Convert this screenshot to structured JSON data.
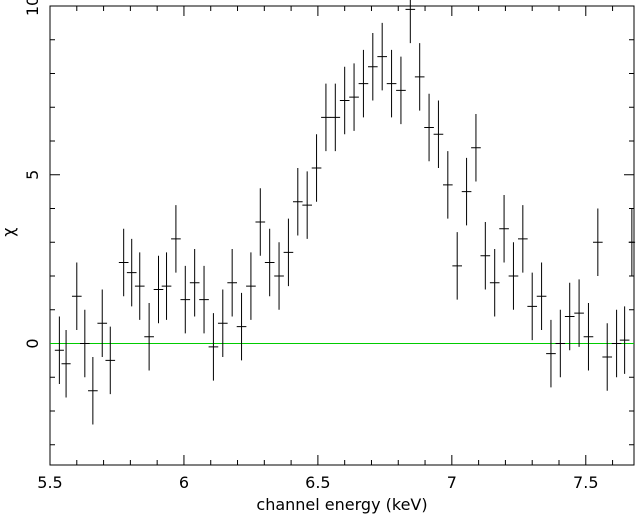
{
  "chart_data": {
    "type": "scatter",
    "title": "",
    "xlabel": "channel energy (keV)",
    "ylabel": "χ",
    "xlim": [
      5.5,
      7.68
    ],
    "ylim": [
      -3.6,
      10.0
    ],
    "xticks": [
      "5.5",
      "6",
      "6.5",
      "7",
      "7.5"
    ],
    "yticks": [
      "0",
      "5",
      "10"
    ],
    "x_tick_values": [
      5.5,
      6.0,
      6.5,
      7.0,
      7.5
    ],
    "y_tick_values": [
      0,
      5,
      10
    ],
    "reference_line": {
      "y": 0,
      "color": "#00cc00"
    },
    "series": [
      {
        "points": [
          {
            "x": 5.535,
            "y": -0.2,
            "xerr": 0.017,
            "yerr": 1.0
          },
          {
            "x": 5.56,
            "y": -0.6,
            "xerr": 0.017,
            "yerr": 1.0
          },
          {
            "x": 5.6,
            "y": 1.4,
            "xerr": 0.018,
            "yerr": 1.0
          },
          {
            "x": 5.63,
            "y": 0.0,
            "xerr": 0.018,
            "yerr": 1.0
          },
          {
            "x": 5.66,
            "y": -1.4,
            "xerr": 0.018,
            "yerr": 1.0
          },
          {
            "x": 5.695,
            "y": 0.6,
            "xerr": 0.018,
            "yerr": 1.0
          },
          {
            "x": 5.725,
            "y": -0.5,
            "xerr": 0.018,
            "yerr": 1.0
          },
          {
            "x": 5.775,
            "y": 2.4,
            "xerr": 0.018,
            "yerr": 1.0
          },
          {
            "x": 5.805,
            "y": 2.1,
            "xerr": 0.018,
            "yerr": 1.0
          },
          {
            "x": 5.835,
            "y": 1.7,
            "xerr": 0.018,
            "yerr": 1.0
          },
          {
            "x": 5.87,
            "y": 0.2,
            "xerr": 0.018,
            "yerr": 1.0
          },
          {
            "x": 5.905,
            "y": 1.6,
            "xerr": 0.018,
            "yerr": 1.0
          },
          {
            "x": 5.935,
            "y": 1.7,
            "xerr": 0.018,
            "yerr": 1.0
          },
          {
            "x": 5.97,
            "y": 3.1,
            "xerr": 0.018,
            "yerr": 1.0
          },
          {
            "x": 6.005,
            "y": 1.3,
            "xerr": 0.018,
            "yerr": 1.0
          },
          {
            "x": 6.04,
            "y": 1.8,
            "xerr": 0.018,
            "yerr": 1.0
          },
          {
            "x": 6.075,
            "y": 1.3,
            "xerr": 0.018,
            "yerr": 1.0
          },
          {
            "x": 6.11,
            "y": -0.1,
            "xerr": 0.018,
            "yerr": 1.0
          },
          {
            "x": 6.145,
            "y": 0.6,
            "xerr": 0.018,
            "yerr": 1.0
          },
          {
            "x": 6.18,
            "y": 1.8,
            "xerr": 0.018,
            "yerr": 1.0
          },
          {
            "x": 6.215,
            "y": 0.5,
            "xerr": 0.018,
            "yerr": 1.0
          },
          {
            "x": 6.25,
            "y": 1.7,
            "xerr": 0.018,
            "yerr": 1.0
          },
          {
            "x": 6.285,
            "y": 3.6,
            "xerr": 0.018,
            "yerr": 1.0
          },
          {
            "x": 6.32,
            "y": 2.4,
            "xerr": 0.018,
            "yerr": 1.0
          },
          {
            "x": 6.355,
            "y": 2.0,
            "xerr": 0.018,
            "yerr": 1.0
          },
          {
            "x": 6.39,
            "y": 2.7,
            "xerr": 0.018,
            "yerr": 1.0
          },
          {
            "x": 6.425,
            "y": 4.2,
            "xerr": 0.018,
            "yerr": 1.0
          },
          {
            "x": 6.46,
            "y": 4.1,
            "xerr": 0.018,
            "yerr": 1.0
          },
          {
            "x": 6.495,
            "y": 5.2,
            "xerr": 0.018,
            "yerr": 1.0
          },
          {
            "x": 6.53,
            "y": 6.7,
            "xerr": 0.018,
            "yerr": 1.0
          },
          {
            "x": 6.565,
            "y": 6.7,
            "xerr": 0.018,
            "yerr": 1.0
          },
          {
            "x": 6.6,
            "y": 7.2,
            "xerr": 0.018,
            "yerr": 1.0
          },
          {
            "x": 6.635,
            "y": 7.3,
            "xerr": 0.018,
            "yerr": 1.0
          },
          {
            "x": 6.67,
            "y": 7.7,
            "xerr": 0.018,
            "yerr": 1.0
          },
          {
            "x": 6.705,
            "y": 8.2,
            "xerr": 0.018,
            "yerr": 1.0
          },
          {
            "x": 6.74,
            "y": 8.5,
            "xerr": 0.018,
            "yerr": 1.0
          },
          {
            "x": 6.775,
            "y": 7.7,
            "xerr": 0.018,
            "yerr": 1.0
          },
          {
            "x": 6.81,
            "y": 7.5,
            "xerr": 0.018,
            "yerr": 1.0
          },
          {
            "x": 6.845,
            "y": 9.9,
            "xerr": 0.018,
            "yerr": 1.0
          },
          {
            "x": 6.88,
            "y": 7.9,
            "xerr": 0.018,
            "yerr": 1.0
          },
          {
            "x": 6.915,
            "y": 6.4,
            "xerr": 0.018,
            "yerr": 1.0
          },
          {
            "x": 6.95,
            "y": 6.2,
            "xerr": 0.018,
            "yerr": 1.0
          },
          {
            "x": 6.985,
            "y": 4.7,
            "xerr": 0.018,
            "yerr": 1.0
          },
          {
            "x": 7.02,
            "y": 2.3,
            "xerr": 0.018,
            "yerr": 1.0
          },
          {
            "x": 7.055,
            "y": 4.5,
            "xerr": 0.018,
            "yerr": 1.0
          },
          {
            "x": 7.09,
            "y": 5.8,
            "xerr": 0.018,
            "yerr": 1.0
          },
          {
            "x": 7.125,
            "y": 2.6,
            "xerr": 0.018,
            "yerr": 1.0
          },
          {
            "x": 7.16,
            "y": 1.8,
            "xerr": 0.018,
            "yerr": 1.0
          },
          {
            "x": 7.195,
            "y": 3.4,
            "xerr": 0.018,
            "yerr": 1.0
          },
          {
            "x": 7.23,
            "y": 2.0,
            "xerr": 0.018,
            "yerr": 1.0
          },
          {
            "x": 7.265,
            "y": 3.1,
            "xerr": 0.018,
            "yerr": 1.0
          },
          {
            "x": 7.3,
            "y": 1.1,
            "xerr": 0.018,
            "yerr": 1.0
          },
          {
            "x": 7.335,
            "y": 1.4,
            "xerr": 0.018,
            "yerr": 1.0
          },
          {
            "x": 7.37,
            "y": -0.3,
            "xerr": 0.018,
            "yerr": 1.0
          },
          {
            "x": 7.405,
            "y": 0.0,
            "xerr": 0.018,
            "yerr": 1.0
          },
          {
            "x": 7.44,
            "y": 0.8,
            "xerr": 0.018,
            "yerr": 1.0
          },
          {
            "x": 7.475,
            "y": 0.9,
            "xerr": 0.018,
            "yerr": 1.0
          },
          {
            "x": 7.51,
            "y": 0.2,
            "xerr": 0.018,
            "yerr": 1.0
          },
          {
            "x": 7.545,
            "y": 3.0,
            "xerr": 0.018,
            "yerr": 1.0
          },
          {
            "x": 7.58,
            "y": -0.4,
            "xerr": 0.018,
            "yerr": 1.0
          },
          {
            "x": 7.615,
            "y": 0.0,
            "xerr": 0.018,
            "yerr": 1.0
          },
          {
            "x": 7.645,
            "y": 0.1,
            "xerr": 0.018,
            "yerr": 1.0
          },
          {
            "x": 7.672,
            "y": 3.0,
            "xerr": 0.012,
            "yerr": 1.0
          }
        ],
        "color": "#000000"
      }
    ]
  }
}
